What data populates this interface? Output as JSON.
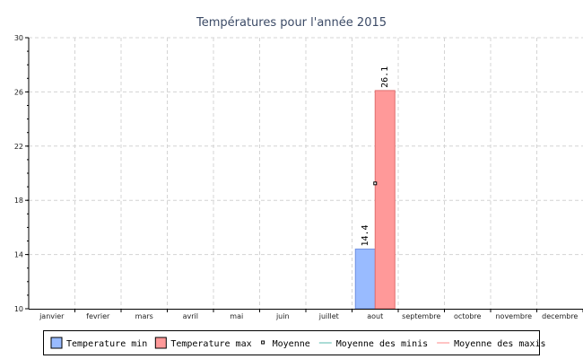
{
  "chart_data": {
    "type": "bar",
    "title": "Températures pour l'année 2015",
    "categories": [
      "janvier",
      "fevrier",
      "mars",
      "avril",
      "mai",
      "juin",
      "juillet",
      "aout",
      "septembre",
      "octobre",
      "novembre",
      "decembre"
    ],
    "series": [
      {
        "name": "Temperature min",
        "values": [
          null,
          null,
          null,
          null,
          null,
          null,
          null,
          14.4,
          null,
          null,
          null,
          null
        ],
        "color": "#99bbff",
        "stroke": "#6f8fe0"
      },
      {
        "name": "Temperature max",
        "values": [
          null,
          null,
          null,
          null,
          null,
          null,
          null,
          26.1,
          null,
          null,
          null,
          null
        ],
        "color": "#ff9999",
        "stroke": "#e06f6f"
      }
    ],
    "data_labels": [
      "14.4",
      "26.1"
    ],
    "moyenne": {
      "name": "Moyenne",
      "month": "aout",
      "value": 19.25
    },
    "legend_lines": [
      {
        "name": "Moyenne des minis",
        "color": "#8fd0c8"
      },
      {
        "name": "Moyenne des maxis",
        "color": "#ffb0b0"
      }
    ],
    "ylim": [
      10,
      30
    ],
    "yticks": [
      10,
      14,
      18,
      22,
      26,
      30
    ],
    "grid": true,
    "legend_position": "bottom"
  }
}
